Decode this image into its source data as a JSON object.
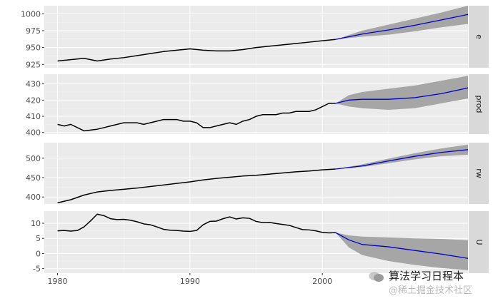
{
  "chart_data": {
    "type": "line",
    "facet_layout": "vertical-stack",
    "x_ticks": [
      "1980",
      "1990",
      "2000"
    ],
    "xlim": [
      1979,
      2011
    ],
    "history_color": "#000000",
    "forecast_color": "#0000cc",
    "interval_color": "#a6a6a6",
    "panels": [
      {
        "strip": "e",
        "ylim": [
          920,
          1012
        ],
        "y_ticks": [
          925,
          950,
          975,
          1000
        ],
        "y_tick_labels": [
          "925",
          "950",
          "975",
          "1000"
        ],
        "history": [
          [
            1980,
            930
          ],
          [
            1981,
            932
          ],
          [
            1982,
            934
          ],
          [
            1983,
            930
          ],
          [
            1984,
            933
          ],
          [
            1985,
            935
          ],
          [
            1986,
            938
          ],
          [
            1987,
            941
          ],
          [
            1988,
            944
          ],
          [
            1989,
            946
          ],
          [
            1990,
            948
          ],
          [
            1991,
            946
          ],
          [
            1992,
            945
          ],
          [
            1993,
            945
          ],
          [
            1994,
            947
          ],
          [
            1995,
            950
          ],
          [
            1996,
            952
          ],
          [
            1997,
            954
          ],
          [
            1998,
            956
          ],
          [
            1999,
            958
          ],
          [
            2000,
            960
          ],
          [
            2001,
            962
          ]
        ],
        "forecast": [
          [
            2001,
            962
          ],
          [
            2003,
            970
          ],
          [
            2005,
            976
          ],
          [
            2007,
            983
          ],
          [
            2009,
            991
          ],
          [
            2011,
            999
          ]
        ],
        "lower": [
          [
            2001,
            962
          ],
          [
            2003,
            966
          ],
          [
            2005,
            969
          ],
          [
            2007,
            974
          ],
          [
            2009,
            980
          ],
          [
            2011,
            985
          ]
        ],
        "upper": [
          [
            2001,
            962
          ],
          [
            2003,
            975
          ],
          [
            2005,
            984
          ],
          [
            2007,
            993
          ],
          [
            2009,
            1002
          ],
          [
            2011,
            1012
          ]
        ]
      },
      {
        "strip": "prod",
        "ylim": [
          399,
          436
        ],
        "y_ticks": [
          400,
          410,
          420,
          430
        ],
        "y_tick_labels": [
          "400",
          "410",
          "420",
          "430"
        ],
        "history": [
          [
            1980,
            405
          ],
          [
            1980.5,
            404
          ],
          [
            1981,
            405
          ],
          [
            1981.5,
            403
          ],
          [
            1982,
            401
          ],
          [
            1982.5,
            401.5
          ],
          [
            1983,
            402
          ],
          [
            1983.5,
            403
          ],
          [
            1984,
            404
          ],
          [
            1984.5,
            405
          ],
          [
            1985,
            406
          ],
          [
            1985.5,
            406
          ],
          [
            1986,
            406
          ],
          [
            1986.5,
            405
          ],
          [
            1987,
            406
          ],
          [
            1987.5,
            407
          ],
          [
            1988,
            408
          ],
          [
            1988.5,
            408
          ],
          [
            1989,
            408
          ],
          [
            1989.5,
            407
          ],
          [
            1990,
            407
          ],
          [
            1990.5,
            406
          ],
          [
            1991,
            403
          ],
          [
            1991.5,
            403
          ],
          [
            1992,
            404
          ],
          [
            1992.5,
            405
          ],
          [
            1993,
            406
          ],
          [
            1993.5,
            405
          ],
          [
            1994,
            407
          ],
          [
            1994.5,
            408
          ],
          [
            1995,
            410
          ],
          [
            1995.5,
            411
          ],
          [
            1996,
            411
          ],
          [
            1996.5,
            411
          ],
          [
            1997,
            412
          ],
          [
            1997.5,
            412
          ],
          [
            1998,
            413
          ],
          [
            1998.5,
            413
          ],
          [
            1999,
            413
          ],
          [
            1999.5,
            414
          ],
          [
            2000,
            416
          ],
          [
            2000.5,
            418
          ],
          [
            2001,
            418
          ]
        ],
        "forecast": [
          [
            2001,
            418
          ],
          [
            2002,
            420
          ],
          [
            2003,
            420.5
          ],
          [
            2005,
            420.5
          ],
          [
            2007,
            421.5
          ],
          [
            2009,
            424
          ],
          [
            2011,
            427.5
          ]
        ],
        "lower": [
          [
            2001,
            418
          ],
          [
            2002,
            416
          ],
          [
            2003,
            415
          ],
          [
            2005,
            414
          ],
          [
            2007,
            415
          ],
          [
            2009,
            418
          ],
          [
            2011,
            421
          ]
        ],
        "upper": [
          [
            2001,
            418
          ],
          [
            2002,
            423
          ],
          [
            2003,
            425
          ],
          [
            2005,
            427
          ],
          [
            2007,
            429
          ],
          [
            2009,
            432
          ],
          [
            2011,
            435
          ]
        ]
      },
      {
        "strip": "rw",
        "ylim": [
          382,
          540
        ],
        "y_ticks": [
          400,
          450,
          500
        ],
        "y_tick_labels": [
          "400",
          "450",
          "500"
        ],
        "history": [
          [
            1980,
            385
          ],
          [
            1981,
            393
          ],
          [
            1982,
            405
          ],
          [
            1983,
            413
          ],
          [
            1984,
            417
          ],
          [
            1985,
            420
          ],
          [
            1986,
            423
          ],
          [
            1987,
            427
          ],
          [
            1988,
            431
          ],
          [
            1989,
            435
          ],
          [
            1990,
            439
          ],
          [
            1991,
            444
          ],
          [
            1992,
            448
          ],
          [
            1993,
            451
          ],
          [
            1994,
            454
          ],
          [
            1995,
            456
          ],
          [
            1996,
            459
          ],
          [
            1997,
            462
          ],
          [
            1998,
            465
          ],
          [
            1999,
            467
          ],
          [
            2000,
            470
          ],
          [
            2001,
            472
          ]
        ],
        "forecast": [
          [
            2001,
            472
          ],
          [
            2003,
            480
          ],
          [
            2005,
            493
          ],
          [
            2007,
            505
          ],
          [
            2009,
            515
          ],
          [
            2011,
            522
          ]
        ],
        "lower": [
          [
            2001,
            472
          ],
          [
            2003,
            477
          ],
          [
            2005,
            487
          ],
          [
            2007,
            497
          ],
          [
            2009,
            505
          ],
          [
            2011,
            509
          ]
        ],
        "upper": [
          [
            2001,
            472
          ],
          [
            2003,
            484
          ],
          [
            2005,
            499
          ],
          [
            2007,
            513
          ],
          [
            2009,
            525
          ],
          [
            2011,
            535
          ]
        ]
      },
      {
        "strip": "U",
        "ylim": [
          -6.5,
          14
        ],
        "y_ticks": [
          -5,
          0,
          5,
          10
        ],
        "y_tick_labels": [
          "-5",
          "0",
          "5",
          "10"
        ],
        "history": [
          [
            1980,
            7.5
          ],
          [
            1980.5,
            7.6
          ],
          [
            1981,
            7.4
          ],
          [
            1981.5,
            7.6
          ],
          [
            1982,
            8.8
          ],
          [
            1982.5,
            10.8
          ],
          [
            1983,
            13
          ],
          [
            1983.5,
            12.5
          ],
          [
            1984,
            11.5
          ],
          [
            1984.5,
            11.2
          ],
          [
            1985,
            11.3
          ],
          [
            1985.5,
            11
          ],
          [
            1986,
            10.5
          ],
          [
            1986.5,
            9.8
          ],
          [
            1987,
            9.5
          ],
          [
            1987.5,
            8.8
          ],
          [
            1988,
            8
          ],
          [
            1988.5,
            7.7
          ],
          [
            1989,
            7.6
          ],
          [
            1989.5,
            7.4
          ],
          [
            1990,
            7.3
          ],
          [
            1990.5,
            7.6
          ],
          [
            1991,
            9.5
          ],
          [
            1991.5,
            10.6
          ],
          [
            1992,
            10.7
          ],
          [
            1992.5,
            11.5
          ],
          [
            1993,
            12.1
          ],
          [
            1993.5,
            11.4
          ],
          [
            1994,
            11.8
          ],
          [
            1994.5,
            11.6
          ],
          [
            1995,
            10.6
          ],
          [
            1995.5,
            10.2
          ],
          [
            1996,
            10.3
          ],
          [
            1996.5,
            9.9
          ],
          [
            1997,
            9.6
          ],
          [
            1997.5,
            9.3
          ],
          [
            1998,
            8.6
          ],
          [
            1998.5,
            7.9
          ],
          [
            1999,
            7.8
          ],
          [
            1999.5,
            7.5
          ],
          [
            2000,
            7.0
          ],
          [
            2000.5,
            6.8
          ],
          [
            2001,
            6.9
          ]
        ],
        "forecast": [
          [
            2001,
            6.9
          ],
          [
            2002,
            4.5
          ],
          [
            2003,
            3.0
          ],
          [
            2005,
            2.2
          ],
          [
            2007,
            1.0
          ],
          [
            2009,
            -0.2
          ],
          [
            2011,
            -1.6
          ]
        ],
        "lower": [
          [
            2001,
            6.9
          ],
          [
            2002,
            2.0
          ],
          [
            2003,
            -0.5
          ],
          [
            2005,
            -2.5
          ],
          [
            2007,
            -3.8
          ],
          [
            2009,
            -4.8
          ],
          [
            2011,
            -5.5
          ]
        ],
        "upper": [
          [
            2001,
            6.9
          ],
          [
            2002,
            6.0
          ],
          [
            2003,
            5.6
          ],
          [
            2005,
            5.3
          ],
          [
            2007,
            5.0
          ],
          [
            2009,
            4.8
          ],
          [
            2011,
            4.4
          ]
        ]
      }
    ]
  },
  "watermark": {
    "line1": "算法学习日程本",
    "line2": "@稀土掘金技术社区"
  }
}
